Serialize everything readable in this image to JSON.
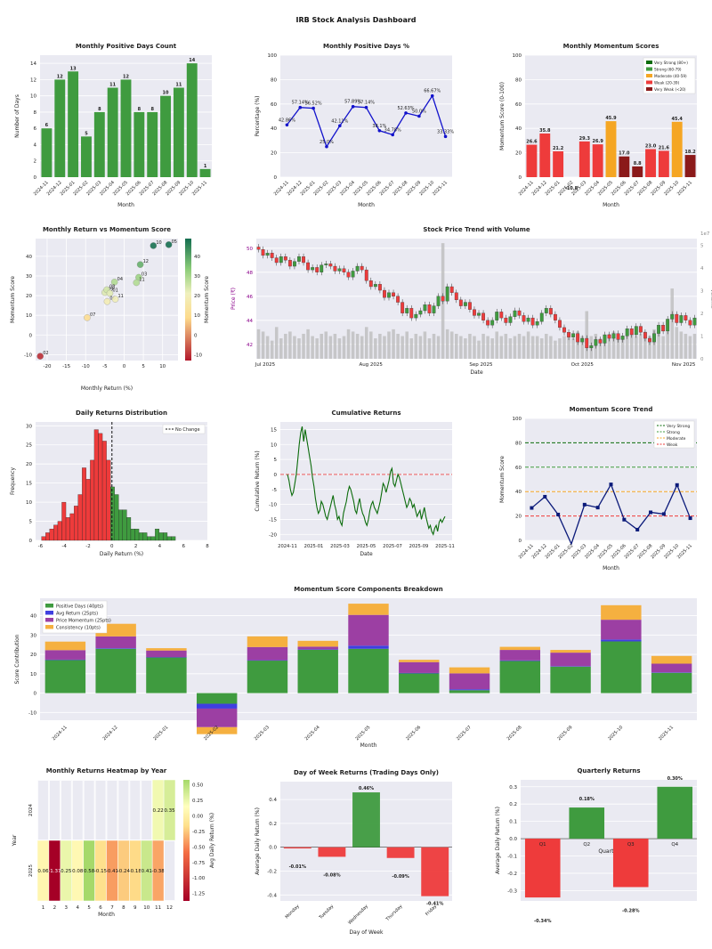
{
  "title": "IRB Stock Analysis Dashboard",
  "colors": {
    "green": "#3f9b3f",
    "red": "#ee3b3b",
    "blue": "#1f35d6",
    "navy": "#0b1a7a",
    "orange": "#f5a623",
    "purple": "#9c3fa3",
    "grid_bg": "#eaeaf2",
    "gray_bar": "#bdbdbd"
  },
  "chart_data": [
    {
      "id": "pos-days",
      "type": "bar",
      "title": "Monthly Positive Days Count",
      "xlabel": "Month",
      "ylabel": "Number of Days",
      "categories": [
        "2024-11",
        "2024-12",
        "2025-01",
        "2025-02",
        "2025-03",
        "2025-04",
        "2025-05",
        "2025-06",
        "2025-07",
        "2025-08",
        "2025-09",
        "2025-10",
        "2025-11"
      ],
      "values": [
        6,
        12,
        13,
        5,
        8,
        11,
        12,
        8,
        8,
        10,
        11,
        14,
        1
      ],
      "value_labels": [
        "6",
        "12",
        "13",
        "5",
        "8",
        "11",
        "12",
        "8",
        "8",
        "10",
        "11",
        "14",
        "1"
      ],
      "ylim": [
        0,
        15
      ],
      "yticks": [
        "0",
        "2",
        "4",
        "6",
        "8",
        "10",
        "12",
        "14"
      ]
    },
    {
      "id": "pos-pct",
      "type": "line",
      "title": "Monthly Positive Days %",
      "xlabel": "Month",
      "ylabel": "Percentage (%)",
      "categories": [
        "2024-11",
        "2024-12",
        "2025-01",
        "2025-02",
        "2025-03",
        "2025-04",
        "2025-05",
        "2025-06",
        "2025-07",
        "2025-08",
        "2025-09",
        "2025-10",
        "2025-11"
      ],
      "values": [
        42.86,
        57.14,
        56.52,
        25.0,
        42.11,
        57.89,
        57.14,
        38.1,
        34.78,
        52.63,
        50.0,
        66.67,
        33.33
      ],
      "value_labels": [
        "42.86%",
        "57.14%",
        "56.52%",
        "25.0%",
        "42.11%",
        "57.89%",
        "57.14%",
        "38.1%",
        "34.78%",
        "52.63%",
        "50.0%",
        "66.67%",
        "33.33%"
      ],
      "ylim": [
        0,
        100
      ],
      "yticks": [
        "0",
        "20",
        "40",
        "60",
        "80",
        "100"
      ]
    },
    {
      "id": "momentum-scores",
      "type": "bar",
      "title": "Monthly Momentum Scores",
      "xlabel": "Month",
      "ylabel": "Momentum Score (0-100)",
      "categories": [
        "2024-11",
        "2024-12",
        "2025-01",
        "2025-02",
        "2025-03",
        "2025-04",
        "2025-05",
        "2025-06",
        "2025-07",
        "2025-08",
        "2025-09",
        "2025-10",
        "2025-11"
      ],
      "values": [
        26.6,
        35.8,
        21.2,
        -10.8,
        29.3,
        26.9,
        45.9,
        17.0,
        8.8,
        23.0,
        21.6,
        45.4,
        18.2
      ],
      "value_labels": [
        "26.6",
        "35.8",
        "21.2",
        "-10.8",
        "29.3",
        "26.9",
        "45.9",
        "17.0",
        "8.8",
        "23.0",
        "21.6",
        "45.4",
        "18.2"
      ],
      "ylim": [
        0,
        100
      ],
      "yticks": [
        "0",
        "20",
        "40",
        "60",
        "80",
        "100"
      ],
      "legend": [
        "Very Strong (80+)",
        "Strong (60-79)",
        "Moderate (40-59)",
        "Weak (20-39)",
        "Very Weak (<20)"
      ],
      "legend_colors": [
        "#0a6b0a",
        "#3f9b3f",
        "#f5a623",
        "#ee3b3b",
        "#8b1a1a"
      ]
    },
    {
      "id": "return-vs-momentum",
      "type": "scatter",
      "title": "Monthly Return vs Momentum Score",
      "xlabel": "Monthly Return (%)",
      "ylabel": "Momentum Score",
      "colorbar_label": "Momentum Score",
      "colorbar_ticks": [
        "40",
        "30",
        "20",
        "10",
        "0",
        "-10"
      ],
      "points": [
        {
          "label": "10",
          "x": 7.6,
          "y": 45.4
        },
        {
          "label": "05",
          "x": 11.6,
          "y": 45.9
        },
        {
          "label": "12",
          "x": 4.2,
          "y": 35.8
        },
        {
          "label": "03",
          "x": 3.8,
          "y": 29.3
        },
        {
          "label": "04",
          "x": -2.5,
          "y": 26.9
        },
        {
          "label": "11",
          "x": 3.2,
          "y": 26.6
        },
        {
          "label": "09",
          "x": -5.0,
          "y": 21.6
        },
        {
          "label": "08",
          "x": -4.5,
          "y": 23.0
        },
        {
          "label": "01",
          "x": -3.7,
          "y": 21.2
        },
        {
          "label": "06",
          "x": -4.4,
          "y": 17.0
        },
        {
          "label": "11",
          "x": -2.3,
          "y": 18.2
        },
        {
          "label": "07",
          "x": -9.6,
          "y": 8.8
        },
        {
          "label": "02",
          "x": -21.8,
          "y": -10.8
        }
      ],
      "xticks": [
        "-20",
        "-15",
        "-10",
        "-5",
        "0",
        "5",
        "10"
      ],
      "yticks": [
        "-10",
        "0",
        "10",
        "20",
        "30",
        "40"
      ]
    },
    {
      "id": "price-trend",
      "type": "candlestick",
      "title": "Stock Price Trend with Volume",
      "xlabel": "Date",
      "ylabel": "Price (₹)",
      "y2label": "Volume",
      "y2_exponent": "1e7",
      "yticks": [
        "42",
        "44",
        "46",
        "48",
        "50"
      ],
      "y2ticks": [
        "0",
        "1",
        "2",
        "3",
        "4",
        "5"
      ],
      "xticks": [
        "Jul 2025",
        "Aug 2025",
        "Sep 2025",
        "Oct 2025",
        "Nov 2025"
      ],
      "close": [
        49.9,
        49.4,
        49.6,
        49.2,
        48.8,
        49.3,
        49.0,
        48.5,
        48.9,
        49.3,
        48.8,
        48.2,
        48.4,
        48.0,
        48.6,
        48.7,
        48.5,
        48.1,
        48.3,
        48.0,
        47.6,
        48.1,
        48.5,
        48.2,
        47.3,
        46.8,
        47.0,
        46.5,
        45.9,
        46.3,
        46.0,
        45.5,
        44.6,
        45.0,
        44.2,
        44.5,
        44.8,
        45.3,
        44.6,
        45.2,
        46.0,
        45.6,
        46.8,
        46.3,
        45.7,
        45.2,
        45.5,
        44.9,
        44.4,
        44.6,
        44.0,
        43.6,
        44.0,
        44.7,
        44.2,
        43.8,
        44.3,
        44.8,
        44.4,
        43.9,
        44.2,
        43.6,
        43.9,
        44.6,
        45.0,
        44.5,
        44.0,
        43.4,
        43.0,
        42.6,
        42.9,
        42.2,
        42.5,
        41.7,
        41.9,
        42.4,
        42.1,
        42.8,
        42.5,
        42.9,
        42.4,
        42.7,
        43.3,
        42.8,
        43.5,
        43.0,
        42.5,
        42.2,
        42.9,
        43.6,
        43.1,
        44.1,
        44.5,
        43.8,
        44.4,
        44.0,
        43.6,
        44.2
      ],
      "volume": [
        1.3,
        1.2,
        1.0,
        0.8,
        1.4,
        0.9,
        1.1,
        1.2,
        1.0,
        0.9,
        1.1,
        1.3,
        1.0,
        0.9,
        1.1,
        1.2,
        1.0,
        1.1,
        0.9,
        1.0,
        1.3,
        1.2,
        1.1,
        1.0,
        1.4,
        1.2,
        0.9,
        1.1,
        1.0,
        1.2,
        1.3,
        1.1,
        1.0,
        1.2,
        0.9,
        1.1,
        1.0,
        1.2,
        0.9,
        1.1,
        1.0,
        5.1,
        1.3,
        1.2,
        1.1,
        1.0,
        0.9,
        1.1,
        1.0,
        0.8,
        1.1,
        1.0,
        0.9,
        1.2,
        1.0,
        1.1,
        0.9,
        1.0,
        1.1,
        1.0,
        1.2,
        1.0,
        1.0,
        0.9,
        1.1,
        1.0,
        0.8,
        0.9,
        1.0,
        1.1,
        0.9,
        1.2,
        1.0,
        2.1,
        1.0,
        1.1,
        0.9,
        1.0,
        1.1,
        1.2,
        0.9,
        1.0,
        1.1,
        1.2,
        1.0,
        1.1,
        1.2,
        1.0,
        1.3,
        1.1,
        1.0,
        1.2,
        3.1,
        1.4,
        1.2,
        1.1,
        1.0,
        1.1
      ]
    },
    {
      "id": "returns-dist",
      "type": "histogram",
      "title": "Daily Returns Distribution",
      "xlabel": "Daily Return (%)",
      "ylabel": "Frequency",
      "legend": "No Change",
      "bin_edges_start": -5.9,
      "bin_width": 0.34,
      "counts": [
        1,
        2,
        3,
        4,
        5,
        10,
        6,
        7,
        9,
        12,
        19,
        16,
        21,
        29,
        28,
        26,
        21,
        14,
        12,
        8,
        8,
        6,
        3,
        3,
        2,
        2,
        1,
        1,
        3,
        2,
        2,
        1,
        1
      ],
      "xticks": [
        "-6",
        "-4",
        "-2",
        "0",
        "2",
        "4",
        "6",
        "8"
      ],
      "yticks": [
        "0",
        "5",
        "10",
        "15",
        "20",
        "25",
        "30"
      ]
    },
    {
      "id": "cumulative",
      "type": "line",
      "title": "Cumulative Returns",
      "xlabel": "Date",
      "ylabel": "Cumulative Return (%)",
      "values": [
        0,
        -2,
        -5,
        -7,
        -6,
        -3,
        0,
        5,
        10,
        14,
        16,
        11,
        15,
        12,
        9,
        6,
        3,
        -1,
        -4,
        -8,
        -11,
        -13,
        -12,
        -9,
        -10,
        -12,
        -14,
        -15,
        -13,
        -11,
        -9,
        -7,
        -10,
        -12,
        -15,
        -14,
        -16,
        -17,
        -13,
        -11,
        -9,
        -6,
        -4,
        -5,
        -7,
        -9,
        -12,
        -13,
        -10,
        -8,
        -11,
        -13,
        -14,
        -16,
        -17,
        -15,
        -12,
        -10,
        -9,
        -11,
        -12,
        -13,
        -11,
        -9,
        -6,
        -3,
        -4,
        -6,
        -4,
        -2,
        1,
        2,
        -3,
        -4,
        -2,
        0,
        -1,
        -3,
        -5,
        -7,
        -9,
        -11,
        -10,
        -8,
        -9,
        -11,
        -10,
        -12,
        -14,
        -13,
        -12,
        -15,
        -13,
        -11,
        -14,
        -16,
        -18,
        -17,
        -19,
        -20,
        -18,
        -17,
        -19,
        -16,
        -15,
        -16,
        -15,
        -14
      ],
      "xticks": [
        "2024-11",
        "2025-01",
        "2025-03",
        "2025-05",
        "2025-07",
        "2025-09",
        "2025-11"
      ],
      "yticks": [
        "-20",
        "-15",
        "-10",
        "-5",
        "0",
        "5",
        "10",
        "15"
      ]
    },
    {
      "id": "momentum-trend",
      "type": "line",
      "title": "Momentum Score Trend",
      "xlabel": "Month",
      "ylabel": "Momentum Score",
      "categories": [
        "2024-11",
        "2024-12",
        "2025-01",
        "2025-02",
        "2025-03",
        "2025-04",
        "2025-05",
        "2025-06",
        "2025-07",
        "2025-08",
        "2025-09",
        "2025-10",
        "2025-11"
      ],
      "values": [
        26.6,
        35.8,
        21.2,
        -10.8,
        29.3,
        26.9,
        45.9,
        17.0,
        8.8,
        23.0,
        21.6,
        45.4,
        18.2
      ],
      "ylim": [
        0,
        100
      ],
      "yticks": [
        "0",
        "20",
        "40",
        "60",
        "80",
        "100"
      ],
      "thresholds": [
        80,
        60,
        40,
        20
      ],
      "legend": [
        "Very Strong",
        "Strong",
        "Moderate",
        "Weak"
      ]
    },
    {
      "id": "components",
      "type": "stacked-bar",
      "title": "Momentum Score Components Breakdown",
      "xlabel": "Month",
      "ylabel": "Score Contribution",
      "categories": [
        "2024-11",
        "2024-12",
        "2025-01",
        "2025-02",
        "2025-03",
        "2025-04",
        "2025-05",
        "2025-06",
        "2025-07",
        "2025-08",
        "2025-09",
        "2025-10",
        "2025-11"
      ],
      "series": [
        {
          "name": "Positive Days (40pts)",
          "values": [
            17.1,
            22.9,
            18.5,
            -5.5,
            16.8,
            22.4,
            22.9,
            10.3,
            1.5,
            16.6,
            13.7,
            26.7,
            10.5
          ]
        },
        {
          "name": "Avg Return (25pts)",
          "values": [
            0.2,
            0.3,
            0.1,
            -2.5,
            0.2,
            0.2,
            1.6,
            0.1,
            0.5,
            0.3,
            0.2,
            1.0,
            0.2
          ]
        },
        {
          "name": "Price Momentum (25pts)",
          "values": [
            4.9,
            6.1,
            3.4,
            -9.6,
            6.8,
            1.4,
            15.9,
            5.6,
            8.2,
            5.4,
            7.0,
            10.2,
            4.5
          ]
        },
        {
          "name": "Consistency (10pts)",
          "values": [
            4.4,
            6.5,
            1.2,
            -3.6,
            5.5,
            3.0,
            5.8,
            1.2,
            3.1,
            1.6,
            1.4,
            7.5,
            4.0
          ]
        }
      ],
      "colors": [
        "#3f9b3f",
        "#3f3fe0",
        "#9c3fa3",
        "#f5b040"
      ],
      "yticks": [
        "-10",
        "0",
        "10",
        "20",
        "30",
        "40"
      ]
    },
    {
      "id": "heatmap",
      "type": "heatmap",
      "title": "Monthly Returns Heatmap by Year",
      "xlabel": "Month",
      "ylabel": "Year",
      "colorbar_label": "Avg Daily Return (%)",
      "colorbar_ticks": [
        "0.50",
        "0.25",
        "0.00",
        "-0.25",
        "-0.50",
        "-0.75",
        "-1.00",
        "-1.25"
      ],
      "rows": [
        "2024",
        "2025"
      ],
      "cols": [
        "1",
        "2",
        "3",
        "4",
        "5",
        "6",
        "7",
        "8",
        "9",
        "10",
        "11",
        "12"
      ],
      "cells": [
        [
          null,
          null,
          null,
          null,
          null,
          null,
          null,
          null,
          null,
          null,
          0.22,
          0.35
        ],
        [
          0.06,
          -1.37,
          0.25,
          0.08,
          0.58,
          -0.15,
          -0.41,
          -0.24,
          -0.18,
          0.41,
          -0.38,
          null
        ]
      ],
      "labels": [
        [
          "",
          "",
          "",
          "",
          "",
          "",
          "",
          "",
          "",
          "",
          "0.22",
          "0.35"
        ],
        [
          "0.06",
          "-1.37",
          "0.25",
          "0.08",
          "0.58",
          "-0.15",
          "-0.41",
          "-0.24",
          "-0.18",
          "0.41",
          "-0.38",
          ""
        ]
      ]
    },
    {
      "id": "dow",
      "type": "bar",
      "title": "Day of Week Returns (Trading Days Only)",
      "xlabel": "Day of Week",
      "ylabel": "Average Daily Return (%)",
      "categories": [
        "Monday",
        "Tuesday",
        "Wednesday",
        "Thursday",
        "Friday"
      ],
      "values": [
        -0.01,
        -0.08,
        0.46,
        -0.09,
        -0.41
      ],
      "value_labels": [
        "-0.01%",
        "-0.08%",
        "0.46%",
        "-0.09%",
        "-0.41%"
      ],
      "ylim": [
        -0.45,
        0.55
      ],
      "yticks": [
        "-0.4",
        "-0.2",
        "0.0",
        "0.2",
        "0.4"
      ]
    },
    {
      "id": "quarterly",
      "type": "bar",
      "title": "Quarterly Returns",
      "xlabel": "Quarter",
      "ylabel": "Average Daily Return (%)",
      "categories": [
        "Q1",
        "Q2",
        "Q3",
        "Q4"
      ],
      "values": [
        -0.34,
        0.18,
        -0.28,
        0.3
      ],
      "value_labels": [
        "-0.34%",
        "0.18%",
        "-0.28%",
        "0.30%"
      ],
      "ylim": [
        -0.36,
        0.34
      ],
      "yticks": [
        "-0.3",
        "-0.2",
        "-0.1",
        "0.0",
        "0.1",
        "0.2",
        "0.3"
      ]
    }
  ]
}
